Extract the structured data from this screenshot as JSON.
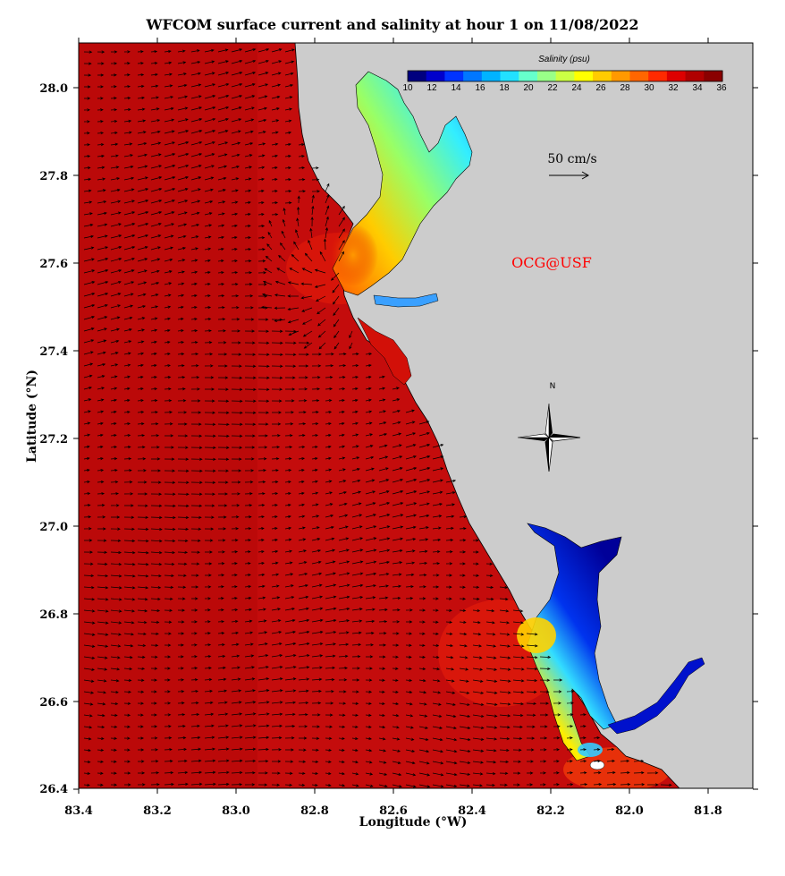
{
  "title": "WFCOM surface current and salinity at hour 1 on 11/08/2022",
  "xlabel": "Longitude (°W)",
  "ylabel": "Latitude (°N)",
  "x_ticks": [
    "83.4",
    "83.2",
    "83.0",
    "82.8",
    "82.6",
    "82.4",
    "82.2",
    "82.0",
    "81.8"
  ],
  "y_ticks": [
    "28.0",
    "27.8",
    "27.6",
    "27.4",
    "27.2",
    "27.0",
    "26.8",
    "26.6",
    "26.4"
  ],
  "colorbar": {
    "title": "Salinity (psu)",
    "ticks": [
      "10",
      "12",
      "14",
      "16",
      "18",
      "20",
      "22",
      "24",
      "26",
      "28",
      "30",
      "32",
      "34",
      "36"
    ],
    "colors": [
      "#00007f",
      "#0000cc",
      "#0033ff",
      "#0077ff",
      "#00b3ff",
      "#22e0ff",
      "#66ffcc",
      "#99ff88",
      "#ccff44",
      "#ffff00",
      "#ffcc00",
      "#ff9900",
      "#ff6600",
      "#ff2a00",
      "#dd0000",
      "#b00000",
      "#8a0000"
    ]
  },
  "scale_label": "50 cm/s",
  "watermark": "OCG@USF",
  "compass_label": "N",
  "colors": {
    "ocean": "#c80a0a",
    "land": "#cccccc",
    "watermark": "#ff0000"
  }
}
